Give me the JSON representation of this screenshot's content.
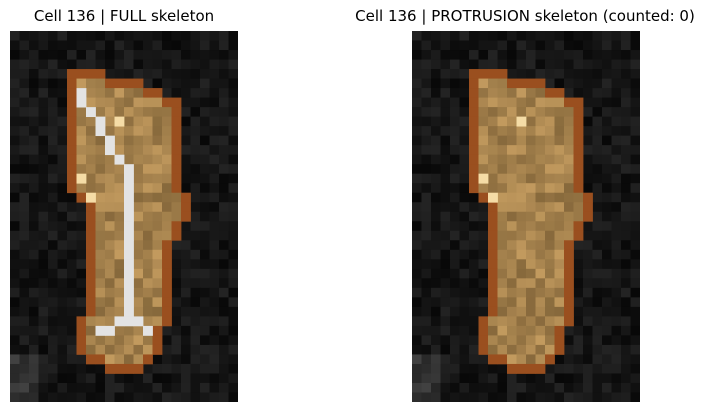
{
  "panels": [
    {
      "title": "Cell 136 | FULL skeleton",
      "show_skeleton": true
    },
    {
      "title": "Cell 136 | PROTRUSION skeleton (counted: 0)",
      "show_skeleton": false
    }
  ],
  "colors": {
    "background": "#0b0b0b",
    "cell_fill": "#a8875a",
    "cell_outline": "#9a4f1f",
    "skeleton": "#e3e3e3",
    "highlight": "#f5dca6"
  }
}
